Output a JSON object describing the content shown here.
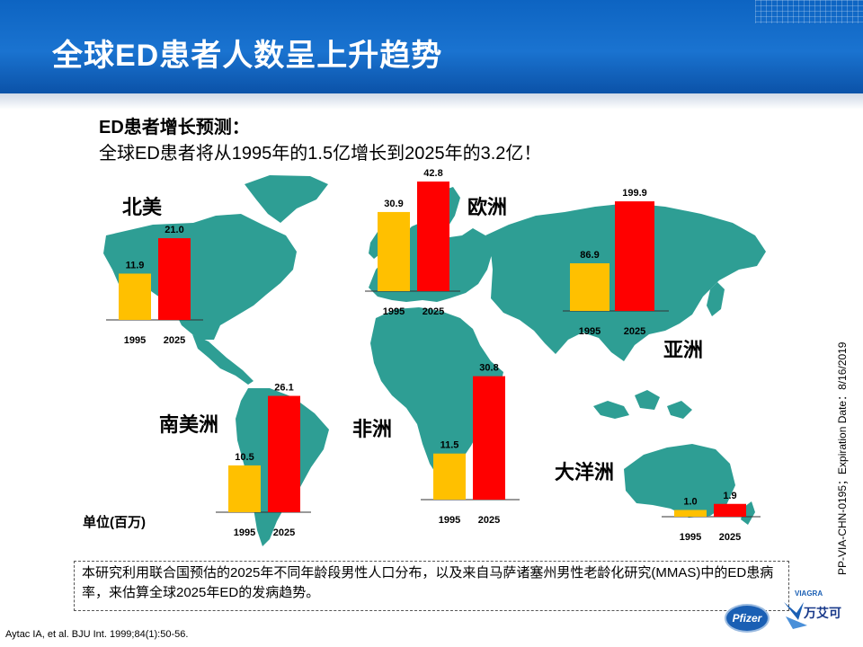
{
  "header": {
    "title": "全球ED患者人数呈上升趋势"
  },
  "subtitle": {
    "line1": "ED患者增长预测：",
    "line2": "全球ED患者将从1995年的1.5亿增长到2025年的3.2亿！"
  },
  "colors": {
    "bar_1995": "#FFC000",
    "bar_2025": "#FF0000",
    "map": "#2E9E94",
    "header": "#1568C6"
  },
  "unit_label": "单位(百万)",
  "chart_data": {
    "type": "bar",
    "categories": [
      "1995",
      "2025"
    ],
    "unit": "单位(百万)",
    "regions": [
      {
        "name": "北美",
        "values": [
          11.9,
          21.0
        ],
        "labels": [
          "11.9",
          "21.0"
        ]
      },
      {
        "name": "欧洲",
        "values": [
          30.9,
          42.8
        ],
        "labels": [
          "30.9",
          "42.8"
        ]
      },
      {
        "name": "亚洲",
        "values": [
          86.9,
          199.9
        ],
        "labels": [
          "86.9",
          "199.9"
        ]
      },
      {
        "name": "南美洲",
        "values": [
          10.5,
          26.1
        ],
        "labels": [
          "10.5",
          "26.1"
        ]
      },
      {
        "name": "非洲",
        "values": [
          11.5,
          30.8
        ],
        "labels": [
          "11.5",
          "30.8"
        ]
      },
      {
        "name": "大洋洲",
        "values": [
          1.0,
          1.9
        ],
        "labels": [
          "1.0",
          "1.9"
        ]
      }
    ]
  },
  "note": "本研究利用联合国预估的2025年不同年龄段男性人口分布，以及来自马萨诸塞州男性老龄化研究(MMAS)中的ED患病率，来估算全球2025年ED的发病趋势。",
  "reference": "Aytac IA, et al. BJU Int. 1999;84(1):50-56.",
  "side_code": "PP-VIA-CHN-0195；Expiration Date：8/16/2019",
  "logos": {
    "pfizer": "Pfizer",
    "viagra_en": "VIAGRA",
    "viagra_cn": "万艾可"
  }
}
